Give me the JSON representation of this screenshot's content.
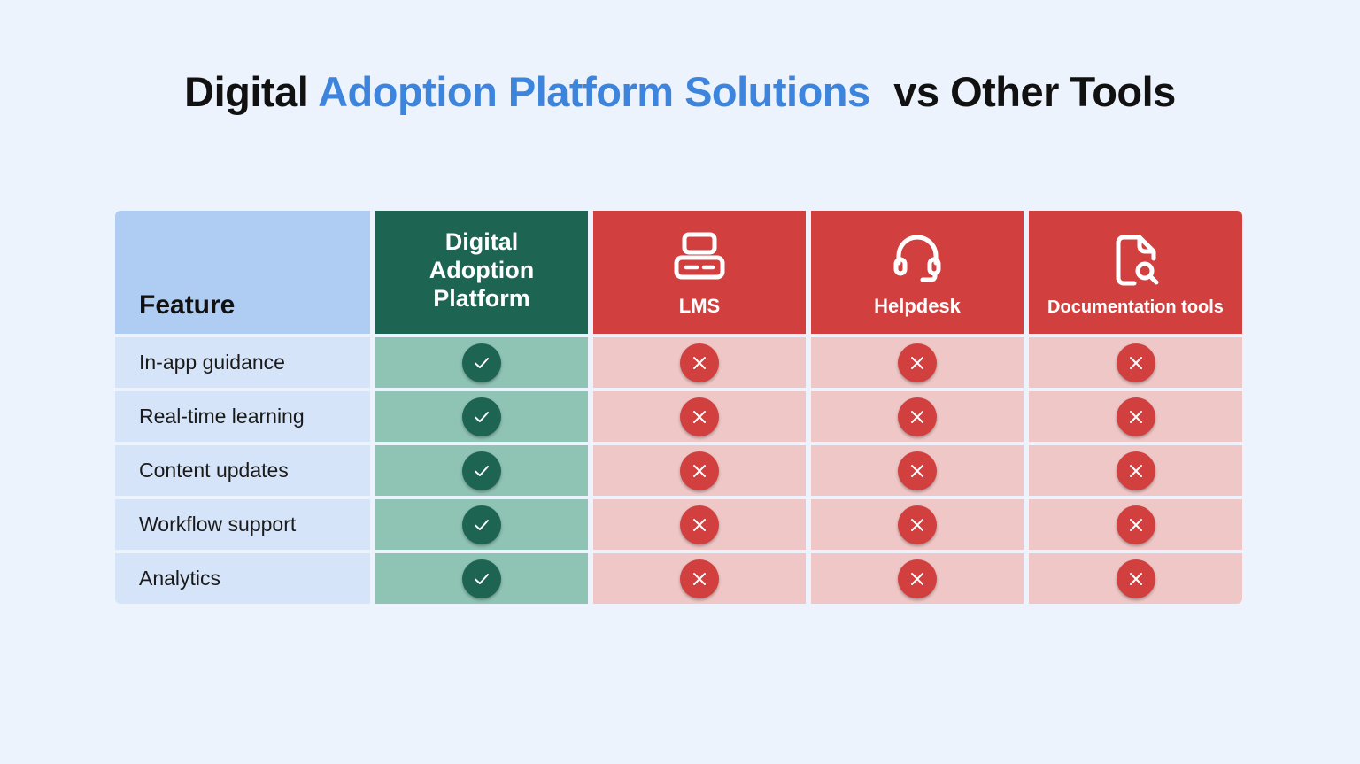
{
  "title": {
    "part1": "Digital",
    "part2": "Adoption Platform Solutions",
    "part3": "vs Other Tools"
  },
  "colors": {
    "accent": "#3d84dc",
    "dap_header": "#1e6452",
    "tool_header": "#d13f3f",
    "feature_header": "#afcdf2",
    "dap_cell": "#8fc3b4",
    "tool_cell": "#f0c7c7"
  },
  "table": {
    "headers": {
      "feature": "Feature",
      "dap": "Digital Adoption Platform",
      "lms": "LMS",
      "helpdesk": "Helpdesk",
      "docs": "Documentation tools"
    },
    "header_icons": {
      "lms": "computer-icon",
      "helpdesk": "headset-icon",
      "docs": "document-search-icon"
    },
    "rows": [
      {
        "feature": "In-app guidance",
        "dap": true,
        "lms": false,
        "helpdesk": false,
        "docs": false
      },
      {
        "feature": "Real-time learning",
        "dap": true,
        "lms": false,
        "helpdesk": false,
        "docs": false
      },
      {
        "feature": "Content updates",
        "dap": true,
        "lms": false,
        "helpdesk": false,
        "docs": false
      },
      {
        "feature": "Workflow support",
        "dap": true,
        "lms": false,
        "helpdesk": false,
        "docs": false
      },
      {
        "feature": "Analytics",
        "dap": true,
        "lms": false,
        "helpdesk": false,
        "docs": false
      }
    ]
  }
}
